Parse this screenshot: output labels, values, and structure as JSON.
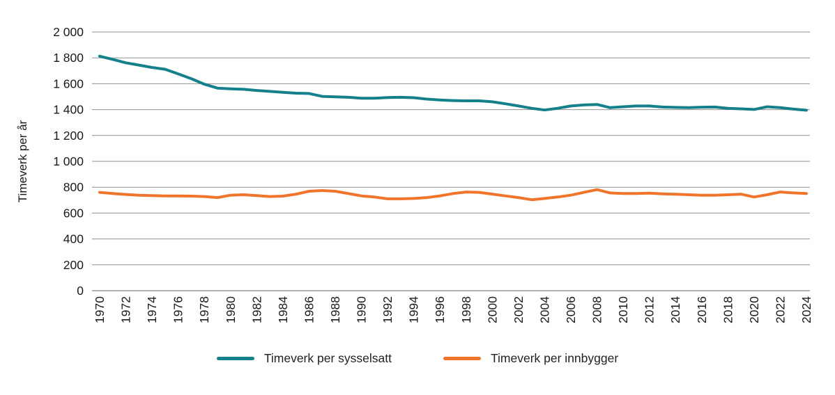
{
  "chart_data": {
    "type": "line",
    "title": "",
    "ylabel": "Timeverk per år",
    "xlabel": "",
    "ylim": [
      0,
      2000
    ],
    "grid": "horizontal",
    "legend_position": "bottom",
    "y_ticks": [
      {
        "value": 0,
        "label": "0"
      },
      {
        "value": 200,
        "label": "200"
      },
      {
        "value": 400,
        "label": "400"
      },
      {
        "value": 600,
        "label": "600"
      },
      {
        "value": 800,
        "label": "800"
      },
      {
        "value": 1000,
        "label": "1 000"
      },
      {
        "value": 1200,
        "label": "1 200"
      },
      {
        "value": 1400,
        "label": "1 400"
      },
      {
        "value": 1600,
        "label": "1 600"
      },
      {
        "value": 1800,
        "label": "1 800"
      },
      {
        "value": 2000,
        "label": "2 000"
      }
    ],
    "x_ticks": [
      {
        "value": 1970,
        "label": "1970"
      },
      {
        "value": 1972,
        "label": "1972"
      },
      {
        "value": 1974,
        "label": "1974"
      },
      {
        "value": 1976,
        "label": "1976"
      },
      {
        "value": 1978,
        "label": "1978"
      },
      {
        "value": 1980,
        "label": "1980"
      },
      {
        "value": 1982,
        "label": "1982"
      },
      {
        "value": 1984,
        "label": "1984"
      },
      {
        "value": 1986,
        "label": "1986"
      },
      {
        "value": 1988,
        "label": "1988"
      },
      {
        "value": 1990,
        "label": "1990"
      },
      {
        "value": 1992,
        "label": "1992"
      },
      {
        "value": 1994,
        "label": "1994"
      },
      {
        "value": 1996,
        "label": "1996"
      },
      {
        "value": 1998,
        "label": "1998"
      },
      {
        "value": 2000,
        "label": "2000"
      },
      {
        "value": 2002,
        "label": "2002"
      },
      {
        "value": 2004,
        "label": "2004"
      },
      {
        "value": 2006,
        "label": "2006"
      },
      {
        "value": 2008,
        "label": "2008"
      },
      {
        "value": 2010,
        "label": "2010"
      },
      {
        "value": 2012,
        "label": "2012"
      },
      {
        "value": 2014,
        "label": "2014"
      },
      {
        "value": 2016,
        "label": "2016"
      },
      {
        "value": 2018,
        "label": "2018"
      },
      {
        "value": 2020,
        "label": "2020"
      },
      {
        "value": 2022,
        "label": "2022"
      },
      {
        "value": 2024,
        "label": "2024"
      }
    ],
    "x": [
      1970,
      1971,
      1972,
      1973,
      1974,
      1975,
      1976,
      1977,
      1978,
      1979,
      1980,
      1981,
      1982,
      1983,
      1984,
      1985,
      1986,
      1987,
      1988,
      1989,
      1990,
      1991,
      1992,
      1993,
      1994,
      1995,
      1996,
      1997,
      1998,
      1999,
      2000,
      2001,
      2002,
      2003,
      2004,
      2005,
      2006,
      2007,
      2008,
      2009,
      2010,
      2011,
      2012,
      2013,
      2014,
      2015,
      2016,
      2017,
      2018,
      2019,
      2020,
      2021,
      2022,
      2023,
      2024
    ],
    "series": [
      {
        "name": "Timeverk per sysselsatt",
        "color": "#14808c",
        "values": [
          1813,
          1788,
          1762,
          1744,
          1726,
          1712,
          1676,
          1639,
          1596,
          1566,
          1561,
          1557,
          1548,
          1541,
          1534,
          1527,
          1525,
          1502,
          1499,
          1495,
          1488,
          1488,
          1493,
          1495,
          1492,
          1481,
          1474,
          1470,
          1468,
          1468,
          1460,
          1445,
          1428,
          1410,
          1397,
          1410,
          1428,
          1436,
          1440,
          1415,
          1422,
          1428,
          1428,
          1420,
          1417,
          1415,
          1419,
          1420,
          1410,
          1406,
          1401,
          1422,
          1415,
          1404,
          1395
        ]
      },
      {
        "name": "Timeverk per innbygger",
        "color": "#f0752b",
        "values": [
          760,
          751,
          744,
          738,
          735,
          733,
          733,
          731,
          728,
          720,
          738,
          742,
          735,
          728,
          731,
          746,
          769,
          774,
          769,
          751,
          733,
          724,
          710,
          710,
          713,
          720,
          733,
          751,
          763,
          760,
          747,
          733,
          720,
          703,
          713,
          724,
          738,
          760,
          781,
          756,
          751,
          751,
          754,
          749,
          746,
          742,
          738,
          738,
          742,
          746,
          724,
          742,
          763,
          756,
          751
        ]
      }
    ]
  },
  "style": {
    "grid_color": "#8f8f8f",
    "axis_zero_color": "#636363",
    "tick_label_color": "#1a1a1a",
    "line_width": 4
  }
}
